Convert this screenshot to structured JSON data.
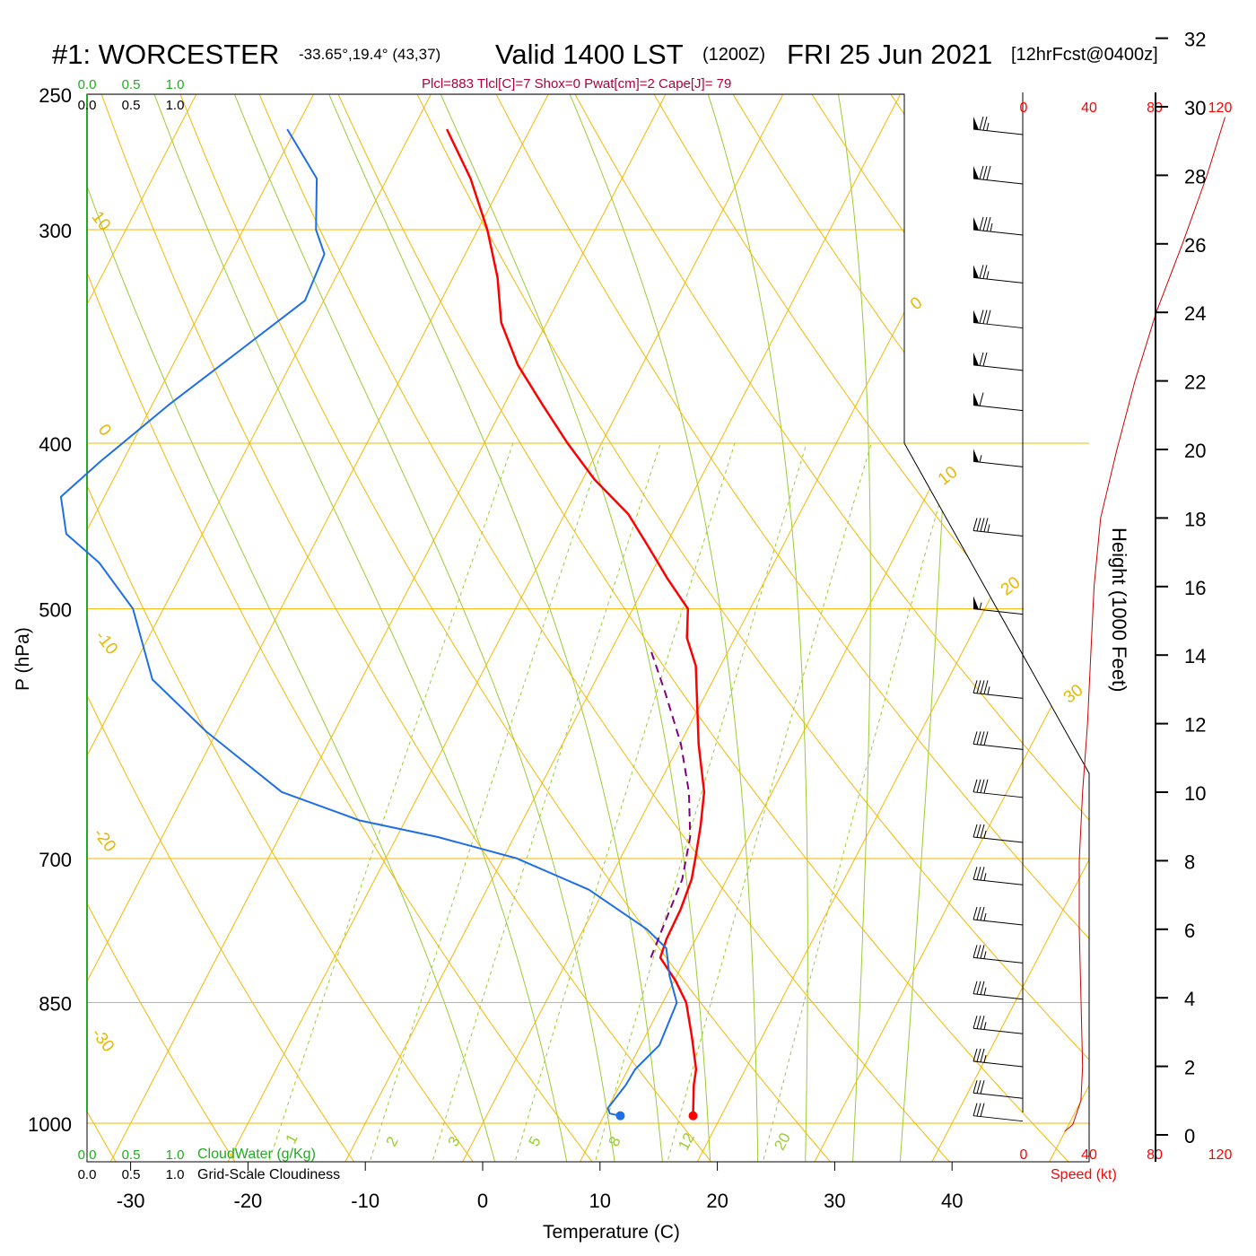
{
  "header": {
    "station": "#1: WORCESTER",
    "coords": "-33.65°,19.4° (43,37)",
    "valid": "Valid 1400 LST",
    "zulu": "(1200Z)",
    "date": "FRI 25 Jun 2021",
    "forecast": "[12hrFcst@0400z]",
    "params": "Plcl=883 Tlcl[C]=7 Shox=0 Pwat[cm]=2 Cape[J]= 79"
  },
  "colors": {
    "temperature": "#ff0000",
    "dewpoint": "#1e6fe6",
    "parcel": "#800080",
    "isotherm_isobar": "#f5b800",
    "moist_adiabat": "#99cc33",
    "mixing_ratio": "#99cc33",
    "cloud_green": "#22aa22"
  },
  "cloud_scale": {
    "cloudwater_ticks": [
      "0.0",
      "0.5",
      "1.0"
    ],
    "cloudiness_ticks": [
      "0.0",
      "0.5",
      "1.0"
    ],
    "cloudwater_label": "CloudWater (g/Kg)",
    "cloudiness_label": "Grid-Scale Cloudiness"
  },
  "wind_scale": {
    "ticks": [
      "0",
      "40",
      "80",
      "120"
    ],
    "label": "Speed (kt)"
  },
  "chart_data": {
    "type": "line",
    "title": "#1: WORCESTER -33.65°,19.4° (43,37) Valid 1400 LST (1200Z) FRI 25 Jun 2021 [12hrFcst@0400z]",
    "xlabel": "Temperature (C)",
    "ylabel": "P (hPa)",
    "y2label": "Height (1000 Feet)",
    "x_ticks": [
      "-30",
      "-20",
      "-10",
      "0",
      "10",
      "20",
      "30",
      "40"
    ],
    "y_ticks": [
      "250",
      "300",
      "400",
      "500",
      "700",
      "850",
      "1000"
    ],
    "height_ticks": [
      "0",
      "2",
      "4",
      "6",
      "8",
      "10",
      "12",
      "14",
      "16",
      "18",
      "20",
      "22",
      "24",
      "26",
      "28",
      "30",
      "32"
    ],
    "isotherm_labels": [
      "10",
      "0",
      "-10",
      "-20",
      "-30",
      "0",
      "10",
      "20",
      "30"
    ],
    "mixing_ratio_labels": [
      "1",
      "2",
      "3",
      "5",
      "8",
      "12",
      "20"
    ],
    "series": [
      {
        "values": [
          [
            17.6,
            990
          ],
          [
            16.3,
            950
          ],
          [
            15.8,
            930
          ],
          [
            14.0,
            890
          ],
          [
            12.0,
            850
          ],
          [
            10.1,
            825
          ],
          [
            7.8,
            800
          ],
          [
            7.5,
            780
          ],
          [
            7.4,
            750
          ],
          [
            7.0,
            720
          ],
          [
            6.4,
            700
          ],
          [
            5.4,
            670
          ],
          [
            4.2,
            640
          ],
          [
            1.6,
            600
          ],
          [
            -0.2,
            570
          ],
          [
            -2.1,
            540
          ],
          [
            -4.1,
            520
          ],
          [
            -5.3,
            500
          ],
          [
            -8.4,
            480
          ],
          [
            -11.4,
            460
          ],
          [
            -14.6,
            440
          ],
          [
            -19.0,
            420
          ],
          [
            -22.9,
            400
          ],
          [
            -26.7,
            380
          ],
          [
            -30.6,
            360
          ],
          [
            -33.9,
            340
          ],
          [
            -36.2,
            320
          ],
          [
            -39.2,
            300
          ],
          [
            -42.9,
            280
          ],
          [
            -47.1,
            262
          ]
        ]
      },
      {
        "values": [
          [
            11.4,
            990
          ],
          [
            10.4,
            987
          ],
          [
            10.0,
            980
          ],
          [
            10.5,
            950
          ],
          [
            10.6,
            930
          ],
          [
            11.6,
            900
          ],
          [
            11.2,
            850
          ],
          [
            9.4,
            820
          ],
          [
            7.9,
            790
          ],
          [
            5.4,
            770
          ],
          [
            -1.3,
            730
          ],
          [
            -8.8,
            700
          ],
          [
            -16.5,
            680
          ],
          [
            -23.9,
            665
          ],
          [
            -31.8,
            640
          ],
          [
            -40.9,
            590
          ],
          [
            -47.8,
            550
          ],
          [
            -52.6,
            500
          ],
          [
            -57.5,
            470
          ],
          [
            -61.6,
            452
          ],
          [
            -63.7,
            430
          ],
          [
            -61.9,
            410
          ],
          [
            -58.6,
            380
          ],
          [
            -54.5,
            350
          ],
          [
            -51.6,
            330
          ],
          [
            -52.0,
            310
          ],
          [
            -53.8,
            300
          ],
          [
            -56.0,
            280
          ],
          [
            -60.7,
            262
          ]
        ]
      },
      {
        "values": [
          [
            7.0,
            800
          ],
          [
            6.6,
            760
          ],
          [
            6.2,
            720
          ],
          [
            5.0,
            680
          ],
          [
            2.9,
            640
          ],
          [
            0.1,
            600
          ],
          [
            -3.5,
            560
          ],
          [
            -6.5,
            530
          ]
        ]
      }
    ],
    "wind_speed_profile_kt": [
      [
        25,
        0.1
      ],
      [
        30,
        0.3
      ],
      [
        35,
        1.0
      ],
      [
        36,
        2.0
      ],
      [
        35,
        4.0
      ],
      [
        34,
        6.0
      ],
      [
        34,
        8.0
      ],
      [
        36,
        10.0
      ],
      [
        39,
        12.0
      ],
      [
        41,
        14.0
      ],
      [
        43,
        16.0
      ],
      [
        47,
        18.0
      ],
      [
        57,
        20.0
      ],
      [
        68,
        22.0
      ],
      [
        81,
        24.0
      ],
      [
        97,
        26.0
      ],
      [
        112,
        28.0
      ],
      [
        123,
        29.7
      ]
    ],
    "wind_barbs": [
      {
        "p": 262,
        "kt": 75
      },
      {
        "p": 280,
        "kt": 80
      },
      {
        "p": 300,
        "kt": 85
      },
      {
        "p": 320,
        "kt": 75
      },
      {
        "p": 340,
        "kt": 80
      },
      {
        "p": 360,
        "kt": 70
      },
      {
        "p": 380,
        "kt": 60
      },
      {
        "p": 410,
        "kt": 55
      },
      {
        "p": 450,
        "kt": 45
      },
      {
        "p": 500,
        "kt": 55
      },
      {
        "p": 560,
        "kt": 45
      },
      {
        "p": 600,
        "kt": 40
      },
      {
        "p": 640,
        "kt": 40
      },
      {
        "p": 680,
        "kt": 35
      },
      {
        "p": 720,
        "kt": 35
      },
      {
        "p": 760,
        "kt": 35
      },
      {
        "p": 800,
        "kt": 35
      },
      {
        "p": 840,
        "kt": 35
      },
      {
        "p": 880,
        "kt": 35
      },
      {
        "p": 920,
        "kt": 35
      },
      {
        "p": 960,
        "kt": 30
      },
      {
        "p": 990,
        "kt": 30
      }
    ]
  }
}
